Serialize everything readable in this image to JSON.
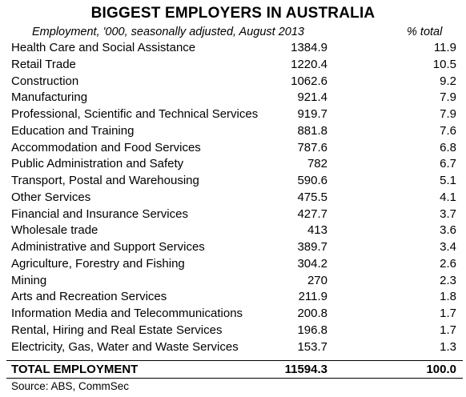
{
  "title": "BIGGEST EMPLOYERS IN AUSTRALIA",
  "subtitle": "Employment, '000, seasonally adjusted, August 2013",
  "pct_header": "% total",
  "rows": [
    {
      "industry": "Health Care and Social Assistance",
      "employment": "1384.9",
      "pct": "11.9"
    },
    {
      "industry": "Retail Trade",
      "employment": "1220.4",
      "pct": "10.5"
    },
    {
      "industry": "Construction",
      "employment": "1062.6",
      "pct": "9.2"
    },
    {
      "industry": "Manufacturing",
      "employment": "921.4",
      "pct": "7.9"
    },
    {
      "industry": "Professional, Scientific and Technical Services",
      "employment": "919.7",
      "pct": "7.9"
    },
    {
      "industry": "Education and Training",
      "employment": "881.8",
      "pct": "7.6"
    },
    {
      "industry": "Accommodation and Food Services",
      "employment": "787.6",
      "pct": "6.8"
    },
    {
      "industry": "Public Administration and Safety",
      "employment": "782",
      "pct": "6.7"
    },
    {
      "industry": "Transport, Postal and Warehousing",
      "employment": "590.6",
      "pct": "5.1"
    },
    {
      "industry": "Other Services",
      "employment": "475.5",
      "pct": "4.1"
    },
    {
      "industry": "Financial and Insurance Services",
      "employment": "427.7",
      "pct": "3.7"
    },
    {
      "industry": "Wholesale trade",
      "employment": "413",
      "pct": "3.6"
    },
    {
      "industry": "Administrative and Support Services",
      "employment": "389.7",
      "pct": "3.4"
    },
    {
      "industry": "Agriculture, Forestry and Fishing",
      "employment": "304.2",
      "pct": "2.6"
    },
    {
      "industry": "Mining",
      "employment": "270",
      "pct": "2.3"
    },
    {
      "industry": "Arts and Recreation Services",
      "employment": "211.9",
      "pct": "1.8"
    },
    {
      "industry": "Information Media and Telecommunications",
      "employment": "200.8",
      "pct": "1.7"
    },
    {
      "industry": "Rental, Hiring and Real Estate Services",
      "employment": "196.8",
      "pct": "1.7"
    },
    {
      "industry": "Electricity, Gas, Water and Waste Services",
      "employment": "153.7",
      "pct": "1.3"
    }
  ],
  "total": {
    "label": "TOTAL EMPLOYMENT",
    "employment": "11594.3",
    "pct": "100.0"
  },
  "source": "Source: ABS, CommSec"
}
